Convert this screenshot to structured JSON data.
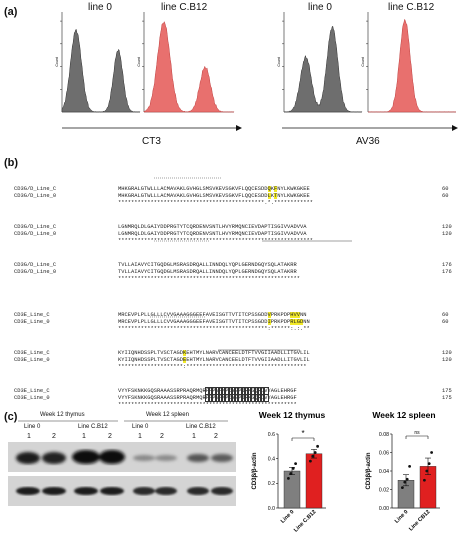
{
  "panel_a": {
    "label": "(a)",
    "plots": [
      {
        "title": "line 0",
        "color": "#6e6e6e",
        "peaks": [
          [
            0.18,
            0.82,
            0.07
          ],
          [
            0.72,
            0.62,
            0.06
          ]
        ]
      },
      {
        "title": "line C.B12",
        "color": "#e8706e",
        "peaks": [
          [
            0.22,
            0.9,
            0.07
          ],
          [
            0.68,
            0.45,
            0.06
          ]
        ]
      },
      {
        "title": "line 0",
        "color": "#6e6e6e",
        "peaks": [
          [
            0.28,
            0.55,
            0.07
          ],
          [
            0.62,
            0.85,
            0.07
          ]
        ]
      },
      {
        "title": "line C.B12",
        "color": "#e8706e",
        "peaks": [
          [
            0.42,
            0.92,
            0.06
          ]
        ]
      }
    ],
    "ylabel": "Count",
    "axis_labels": [
      "CT3",
      "AV36"
    ]
  },
  "panel_b": {
    "label": "(b)",
    "cd3g": [
      {
        "name": "CD3G/D_Line_C",
        "seq": "MHKGRALGTWLLLACMAVAKLGVHGLSMSVKEVSGKVFLQQCESDDQKFNYLKWKGKEE",
        "end": "60"
      },
      {
        "name": "CD3G/D_Line_0",
        "seq": "MHKGRALGTWLLLACMAVAKLGVHGLSMSVKEVSGKVFLQQCESDDLKTNYLKWKGKEE",
        "end": "60"
      },
      {
        "name": "",
        "seq": "*********************************************.*.************",
        "end": ""
      },
      {
        "name": "CD3G/D_Line_C",
        "seq": "LGNMRQLDLGAIYDDPRGTYTCQRDENVSNTLHVYRMQNCIEVDAPTISGIVVADVVA",
        "end": "120"
      },
      {
        "name": "CD3G/D_Line_0",
        "seq": "LGNMRQLDLGAIYDDPRGTYTCQRDENVSNTLHVYRMQNCIEVDAPTISGIVVADVVA",
        "end": "120"
      },
      {
        "name": "",
        "seq": "************************************************************",
        "end": ""
      },
      {
        "name": "CD3G/D_Line_C",
        "seq": "TVLLAIAVYCITGQDGLMSRASDRQALLINNDQLYQPLGERNDGQYSQLATAKRR",
        "end": "176"
      },
      {
        "name": "CD3G/D_Line_0",
        "seq": "TVLLAIAVYCITGQDGLMSRASDRQALLINNDQLYQPLGERNDGQYSQLATAKRR",
        "end": "176"
      },
      {
        "name": "",
        "seq": "********************************************************",
        "end": ""
      }
    ],
    "cd3e": [
      {
        "name": "CD3E_Line_C",
        "seq": "MRCEVPLPLLGLLLCVVGAAAGGGEEFAVEISGTTVTITCPSSGDDVPRKPDPHVVNN",
        "end": "60"
      },
      {
        "name": "CD3E_Line_0",
        "seq": "MRCEVPLPLLGLLLCVVGAAAGGGEEFAVEISGTTVTITCPSSGDDIPRKPDPRLGDNN",
        "end": "60"
      },
      {
        "name": "",
        "seq": "**********************************************:******:.:.**",
        "end": ""
      },
      {
        "name": "CD3E_Line_C",
        "seq": "KYIIQNHDSSPLTVSCTAGDKEHTMYLNARVCANCEELDTFTVVGIIAADLLITGVLIL",
        "end": "120"
      },
      {
        "name": "CD3E_Line_0",
        "seq": "KYIIQNHDSSPLTVSCTAGDEEHTMYLNARVCANCEELDTFTVVGIIAADLLITGVLIL",
        "end": "120"
      },
      {
        "name": "",
        "seq": "********************:*************************************",
        "end": ""
      },
      {
        "name": "CD3E_Line_C",
        "seq": "VYYFSKNKKGQSRAAASSRPRAQRMQRPPPVPNPDYEPIRKGQRDVYAGLEHRGF",
        "end": "175"
      },
      {
        "name": "CD3E_Line_0",
        "seq": "VYYFSKNKKGQSRAAASSRPRAQRMQRPPPVPNPDYEPIRKGQRDVYAGLEHRGF",
        "end": "175"
      },
      {
        "name": "",
        "seq": "*******************************************************",
        "end": ""
      }
    ]
  },
  "panel_c": {
    "label": "(c)",
    "blot_groups": [
      "Week 12 thymus",
      "Week 12 spleen"
    ],
    "blot_lines": [
      "Line 0",
      "Line C.B12",
      "Line 0",
      "Line C.B12"
    ],
    "blot_lanes": [
      "1",
      "2",
      "1",
      "2",
      "1",
      "2",
      "1",
      "2"
    ],
    "charts": [
      {
        "title": "Week 12 thymus",
        "ylabel": "CD3β/β-actin",
        "categories": [
          "Line 0",
          "Line C.B12"
        ],
        "colors": [
          "#7f7f7f",
          "#e02020"
        ],
        "values": [
          0.3,
          0.44
        ],
        "errors": [
          0.03,
          0.035
        ],
        "points": [
          [
            0.24,
            0.28,
            0.32,
            0.36
          ],
          [
            0.38,
            0.42,
            0.45,
            0.5
          ]
        ],
        "ylim": [
          0,
          0.6
        ],
        "yticks": [
          "0.0",
          "0.2",
          "0.4",
          "0.6"
        ],
        "sig": "*"
      },
      {
        "title": "Week 12 spleen",
        "ylabel": "CD3β/β-actin",
        "categories": [
          "Line 0",
          "Line CB12"
        ],
        "colors": [
          "#7f7f7f",
          "#e02020"
        ],
        "values": [
          0.03,
          0.045
        ],
        "errors": [
          0.006,
          0.009
        ],
        "points": [
          [
            0.022,
            0.028,
            0.031,
            0.045
          ],
          [
            0.03,
            0.04,
            0.048,
            0.06
          ]
        ],
        "ylim": [
          0,
          0.08
        ],
        "yticks": [
          "0.00",
          "0.02",
          "0.04",
          "0.06",
          "0.08"
        ],
        "sig": "ns"
      }
    ]
  }
}
